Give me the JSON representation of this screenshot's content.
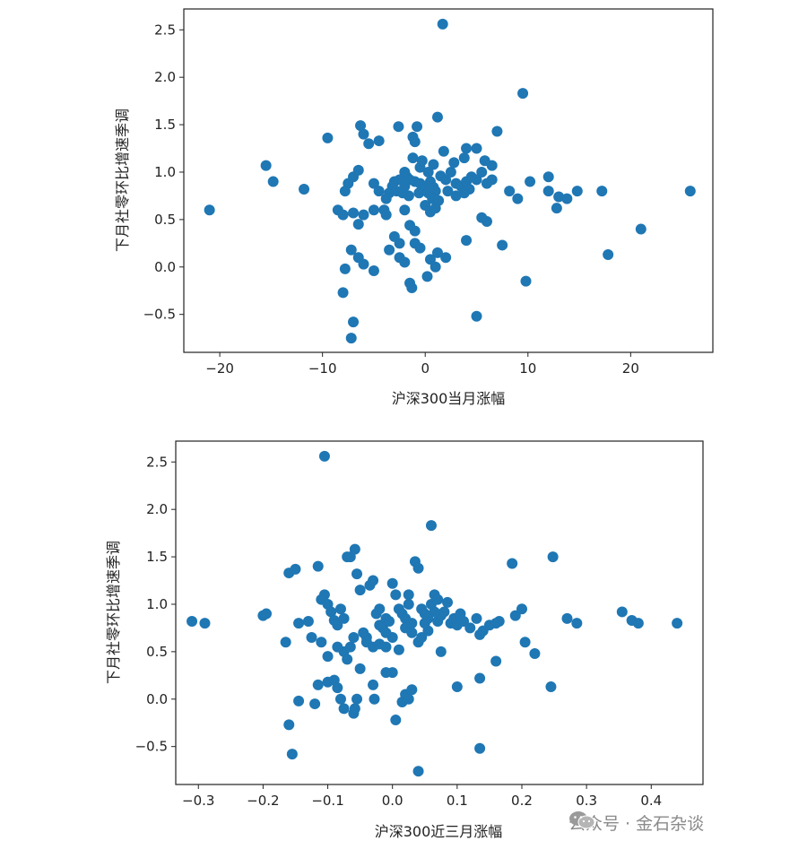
{
  "watermark": {
    "text": "公众号 · 金石杂谈",
    "icon": "wechat-icon"
  },
  "colors": {
    "points": "#1f77b4",
    "axes": "#222222"
  },
  "chart_data": [
    {
      "type": "scatter",
      "xlabel": "沪深300当月涨幅",
      "ylabel": "下月社零环比增速季调",
      "xlim": [
        -23.5,
        28
      ],
      "ylim": [
        -0.9,
        2.72
      ],
      "xticks": [
        -20,
        -10,
        0,
        10,
        20
      ],
      "xtick_labels": [
        "−20",
        "−10",
        "0",
        "10",
        "20"
      ],
      "yticks": [
        -0.5,
        0.0,
        0.5,
        1.0,
        1.5,
        2.0,
        2.5
      ],
      "ytick_labels": [
        "−0.5",
        "0.0",
        "0.5",
        "1.0",
        "1.5",
        "2.0",
        "2.5"
      ],
      "points": [
        [
          1.7,
          2.56
        ],
        [
          9.5,
          1.83
        ],
        [
          1.2,
          1.58
        ],
        [
          -9.5,
          1.36
        ],
        [
          -6.3,
          1.49
        ],
        [
          -6.0,
          1.4
        ],
        [
          -2.6,
          1.48
        ],
        [
          -0.8,
          1.48
        ],
        [
          -1.2,
          1.37
        ],
        [
          -5.5,
          1.3
        ],
        [
          -4.5,
          1.33
        ],
        [
          -1.0,
          1.32
        ],
        [
          4.0,
          1.25
        ],
        [
          5.0,
          1.25
        ],
        [
          7.0,
          1.43
        ],
        [
          6.5,
          1.07
        ],
        [
          -15.5,
          1.07
        ],
        [
          -14.8,
          0.9
        ],
        [
          -11.8,
          0.82
        ],
        [
          -21.0,
          0.6
        ],
        [
          -7.0,
          0.95
        ],
        [
          -6.5,
          1.02
        ],
        [
          -7.5,
          0.88
        ],
        [
          -7.8,
          0.8
        ],
        [
          -5.0,
          0.88
        ],
        [
          -4.5,
          0.8
        ],
        [
          -3.2,
          0.85
        ],
        [
          -3.5,
          0.78
        ],
        [
          -2.0,
          1.0
        ],
        [
          -1.8,
          0.95
        ],
        [
          -1.5,
          0.92
        ],
        [
          -1.0,
          0.9
        ],
        [
          -0.5,
          0.88
        ],
        [
          0.0,
          0.85
        ],
        [
          0.5,
          0.9
        ],
        [
          0.8,
          0.84
        ],
        [
          1.0,
          0.8
        ],
        [
          1.5,
          0.96
        ],
        [
          2.0,
          0.92
        ],
        [
          2.5,
          1.0
        ],
        [
          3.0,
          0.88
        ],
        [
          3.5,
          0.85
        ],
        [
          4.0,
          0.9
        ],
        [
          4.5,
          0.95
        ],
        [
          5.0,
          0.92
        ],
        [
          5.5,
          1.0
        ],
        [
          6.0,
          0.88
        ],
        [
          6.5,
          0.92
        ],
        [
          -2.8,
          0.8
        ],
        [
          -2.2,
          0.78
        ],
        [
          -1.6,
          0.75
        ],
        [
          -0.6,
          0.78
        ],
        [
          -0.2,
          0.82
        ],
        [
          0.3,
          0.78
        ],
        [
          0.7,
          0.72
        ],
        [
          1.3,
          0.7
        ],
        [
          2.2,
          0.8
        ],
        [
          3.0,
          0.75
        ],
        [
          3.8,
          0.78
        ],
        [
          4.3,
          0.82
        ],
        [
          -3.8,
          0.72
        ],
        [
          -4.0,
          0.6
        ],
        [
          -2.0,
          0.6
        ],
        [
          0.0,
          0.65
        ],
        [
          0.5,
          0.58
        ],
        [
          1.0,
          0.62
        ],
        [
          8.2,
          0.8
        ],
        [
          9.0,
          0.72
        ],
        [
          10.2,
          0.9
        ],
        [
          12.0,
          0.95
        ],
        [
          12.0,
          0.8
        ],
        [
          13.0,
          0.74
        ],
        [
          13.8,
          0.72
        ],
        [
          14.8,
          0.8
        ],
        [
          17.2,
          0.8
        ],
        [
          25.8,
          0.8
        ],
        [
          12.8,
          0.62
        ],
        [
          21.0,
          0.4
        ],
        [
          17.8,
          0.13
        ],
        [
          9.8,
          -0.15
        ],
        [
          7.5,
          0.23
        ],
        [
          6.0,
          0.48
        ],
        [
          5.5,
          0.52
        ],
        [
          4.0,
          0.28
        ],
        [
          5.0,
          -0.52
        ],
        [
          -8.5,
          0.6
        ],
        [
          -8.0,
          0.55
        ],
        [
          -7.0,
          0.57
        ],
        [
          -6.5,
          0.45
        ],
        [
          -6.0,
          0.55
        ],
        [
          -5.0,
          0.6
        ],
        [
          -3.8,
          0.55
        ],
        [
          -7.2,
          0.18
        ],
        [
          -6.5,
          0.1
        ],
        [
          -6.0,
          0.03
        ],
        [
          -5.0,
          -0.04
        ],
        [
          -7.8,
          -0.02
        ],
        [
          -8.0,
          -0.27
        ],
        [
          -7.0,
          -0.58
        ],
        [
          -7.2,
          -0.75
        ],
        [
          -2.5,
          0.1
        ],
        [
          -2.0,
          0.05
        ],
        [
          -1.5,
          -0.17
        ],
        [
          -1.3,
          -0.22
        ],
        [
          0.2,
          -0.1
        ],
        [
          1.0,
          0.0
        ],
        [
          2.0,
          0.1
        ],
        [
          -3.5,
          0.18
        ],
        [
          -2.5,
          0.25
        ],
        [
          -1.0,
          0.38
        ],
        [
          -1.0,
          0.25
        ],
        [
          -0.5,
          0.2
        ],
        [
          0.5,
          0.08
        ],
        [
          1.2,
          0.15
        ],
        [
          -3.0,
          0.32
        ],
        [
          -1.5,
          0.44
        ],
        [
          -3.0,
          0.9
        ],
        [
          -2.5,
          0.92
        ],
        [
          -2.0,
          0.85
        ],
        [
          -1.2,
          1.15
        ],
        [
          -0.5,
          1.05
        ],
        [
          0.3,
          1.0
        ],
        [
          2.8,
          1.1
        ],
        [
          3.8,
          1.15
        ],
        [
          5.8,
          1.12
        ],
        [
          1.8,
          1.22
        ],
        [
          0.8,
          1.08
        ],
        [
          -0.3,
          1.12
        ]
      ]
    },
    {
      "type": "scatter",
      "xlabel": "沪深300近三月涨幅",
      "ylabel": "下月社零环比增速季调",
      "xlim": [
        -0.335,
        0.48
      ],
      "ylim": [
        -0.9,
        2.72
      ],
      "xticks": [
        -0.3,
        -0.2,
        -0.1,
        0.0,
        0.1,
        0.2,
        0.3,
        0.4
      ],
      "xtick_labels": [
        "−0.3",
        "−0.2",
        "−0.1",
        "0.0",
        "0.1",
        "0.2",
        "0.3",
        "0.4"
      ],
      "yticks": [
        -0.5,
        0.0,
        0.5,
        1.0,
        1.5,
        2.0,
        2.5
      ],
      "ytick_labels": [
        "−0.5",
        "0.0",
        "0.5",
        "1.0",
        "1.5",
        "2.0",
        "2.5"
      ],
      "points": [
        [
          -0.105,
          2.56
        ],
        [
          0.06,
          1.83
        ],
        [
          -0.31,
          0.82
        ],
        [
          -0.29,
          0.8
        ],
        [
          -0.2,
          0.88
        ],
        [
          -0.195,
          0.9
        ],
        [
          -0.165,
          0.6
        ],
        [
          -0.16,
          1.33
        ],
        [
          -0.15,
          1.37
        ],
        [
          -0.145,
          0.8
        ],
        [
          -0.13,
          0.82
        ],
        [
          -0.125,
          0.65
        ],
        [
          -0.115,
          1.4
        ],
        [
          -0.11,
          1.05
        ],
        [
          -0.105,
          1.1
        ],
        [
          -0.1,
          1.0
        ],
        [
          -0.095,
          0.92
        ],
        [
          -0.09,
          0.83
        ],
        [
          -0.085,
          0.78
        ],
        [
          -0.08,
          0.95
        ],
        [
          -0.075,
          0.85
        ],
        [
          -0.07,
          1.5
        ],
        [
          -0.065,
          1.5
        ],
        [
          -0.058,
          1.58
        ],
        [
          -0.055,
          1.32
        ],
        [
          -0.05,
          1.15
        ],
        [
          -0.045,
          0.7
        ],
        [
          -0.04,
          0.65
        ],
        [
          -0.035,
          1.2
        ],
        [
          -0.03,
          1.25
        ],
        [
          -0.025,
          0.9
        ],
        [
          -0.02,
          0.78
        ],
        [
          -0.015,
          0.75
        ],
        [
          -0.01,
          0.85
        ],
        [
          -0.005,
          0.82
        ],
        [
          0.0,
          1.22
        ],
        [
          0.005,
          1.1
        ],
        [
          0.01,
          0.95
        ],
        [
          0.015,
          0.9
        ],
        [
          0.02,
          0.85
        ],
        [
          0.025,
          1.0
        ],
        [
          0.03,
          0.8
        ],
        [
          0.035,
          1.45
        ],
        [
          0.04,
          1.38
        ],
        [
          0.045,
          0.95
        ],
        [
          0.05,
          0.9
        ],
        [
          0.055,
          0.85
        ],
        [
          0.06,
          1.0
        ],
        [
          0.065,
          1.1
        ],
        [
          0.07,
          0.82
        ],
        [
          0.075,
          0.88
        ],
        [
          0.08,
          0.92
        ],
        [
          0.085,
          1.02
        ],
        [
          0.09,
          0.8
        ],
        [
          0.095,
          0.85
        ],
        [
          0.1,
          0.78
        ],
        [
          0.105,
          0.9
        ],
        [
          0.11,
          0.82
        ],
        [
          0.12,
          0.75
        ],
        [
          0.13,
          0.85
        ],
        [
          0.135,
          0.68
        ],
        [
          0.14,
          0.72
        ],
        [
          0.15,
          0.78
        ],
        [
          0.16,
          0.8
        ],
        [
          0.165,
          0.82
        ],
        [
          0.185,
          1.43
        ],
        [
          0.19,
          0.88
        ],
        [
          0.2,
          0.95
        ],
        [
          0.205,
          0.6
        ],
        [
          0.22,
          0.48
        ],
        [
          0.245,
          0.13
        ],
        [
          0.248,
          1.5
        ],
        [
          0.27,
          0.85
        ],
        [
          0.285,
          0.8
        ],
        [
          0.355,
          0.92
        ],
        [
          0.37,
          0.83
        ],
        [
          0.38,
          0.8
        ],
        [
          0.44,
          0.8
        ],
        [
          0.135,
          -0.52
        ],
        [
          0.04,
          -0.76
        ],
        [
          -0.155,
          -0.58
        ],
        [
          -0.16,
          -0.27
        ],
        [
          -0.145,
          -0.02
        ],
        [
          -0.12,
          -0.05
        ],
        [
          -0.115,
          0.15
        ],
        [
          -0.1,
          0.18
        ],
        [
          -0.09,
          0.2
        ],
        [
          -0.085,
          0.12
        ],
        [
          -0.08,
          0.0
        ],
        [
          -0.075,
          -0.1
        ],
        [
          -0.06,
          -0.15
        ],
        [
          -0.058,
          -0.1
        ],
        [
          -0.055,
          0.0
        ],
        [
          -0.03,
          0.15
        ],
        [
          -0.028,
          0.0
        ],
        [
          -0.01,
          0.28
        ],
        [
          0.0,
          0.28
        ],
        [
          0.005,
          -0.22
        ],
        [
          0.015,
          -0.03
        ],
        [
          0.02,
          0.05
        ],
        [
          0.025,
          0.0
        ],
        [
          0.03,
          0.1
        ],
        [
          0.075,
          0.5
        ],
        [
          0.1,
          0.13
        ],
        [
          0.135,
          0.22
        ],
        [
          0.16,
          0.4
        ],
        [
          -0.075,
          0.5
        ],
        [
          -0.07,
          0.42
        ],
        [
          -0.065,
          0.55
        ],
        [
          -0.05,
          0.32
        ],
        [
          -0.04,
          0.6
        ],
        [
          -0.03,
          0.55
        ],
        [
          -0.02,
          0.58
        ],
        [
          -0.01,
          0.55
        ],
        [
          0.0,
          0.65
        ],
        [
          0.01,
          0.52
        ],
        [
          0.02,
          0.75
        ],
        [
          0.03,
          0.7
        ],
        [
          0.04,
          0.6
        ],
        [
          -0.11,
          0.6
        ],
        [
          -0.1,
          0.45
        ],
        [
          -0.085,
          0.55
        ],
        [
          -0.06,
          0.65
        ],
        [
          0.045,
          0.65
        ],
        [
          0.055,
          0.72
        ],
        [
          0.05,
          0.8
        ],
        [
          0.065,
          0.92
        ],
        [
          0.07,
          1.05
        ],
        [
          0.025,
          1.1
        ],
        [
          -0.02,
          0.95
        ],
        [
          -0.01,
          0.7
        ]
      ]
    }
  ]
}
